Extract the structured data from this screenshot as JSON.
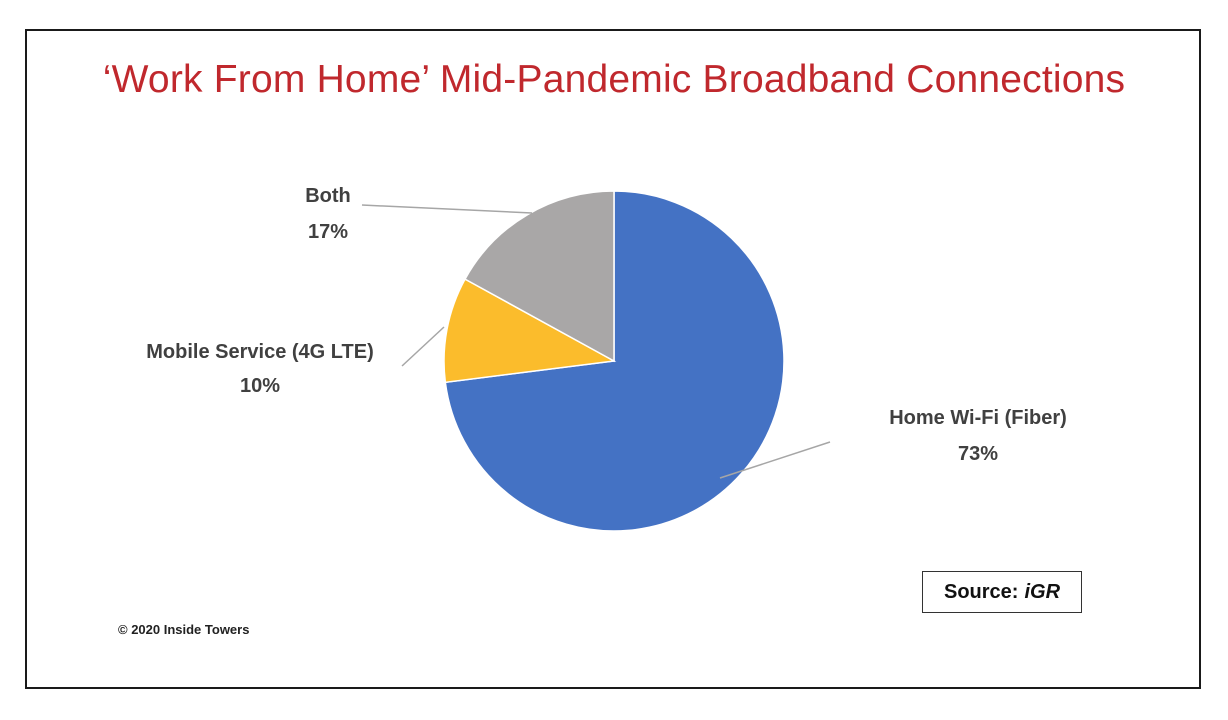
{
  "title": "‘Work From Home’ Mid-Pandemic Broadband Connections",
  "chart_data": {
    "type": "pie",
    "title": "‘Work From Home’ Mid-Pandemic Broadband Connections",
    "start_angle_deg": 0,
    "direction": "clockwise",
    "slices": [
      {
        "label": "Home Wi-Fi (Fiber)",
        "value": 73,
        "value_label": "73%",
        "color": "#4472c4"
      },
      {
        "label": "Mobile Service (4G LTE)",
        "value": 10,
        "value_label": "10%",
        "color": "#fbbc2c"
      },
      {
        "label": "Both",
        "value": 17,
        "value_label": "17%",
        "color": "#a9a7a7"
      }
    ],
    "legend": "none",
    "data_labels": "outside with leader lines"
  },
  "source": {
    "prefix": "Source:",
    "name": "iGR"
  },
  "copyright": "© 2020 Inside Towers"
}
